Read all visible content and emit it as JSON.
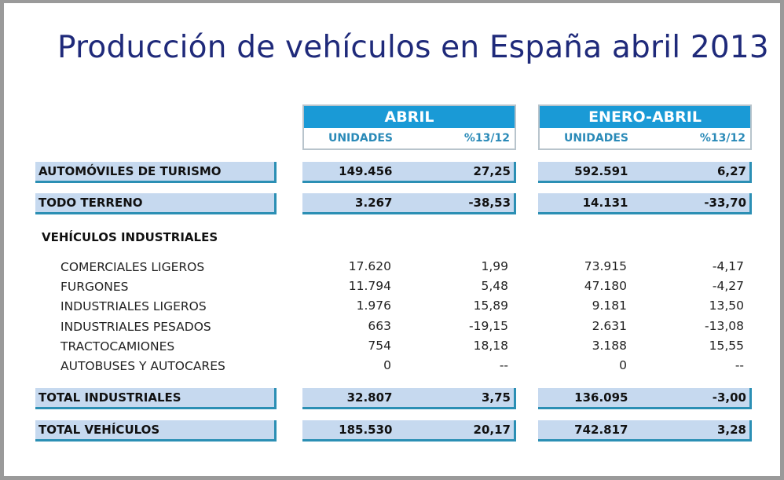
{
  "title": "Producción de vehículos en España abril 2013",
  "columns": {
    "abril": {
      "label": "ABRIL",
      "units": "UNIDADES",
      "pct": "%13/12"
    },
    "enero_abril": {
      "label": "ENERO-ABRIL",
      "units": "UNIDADES",
      "pct": "%13/12"
    }
  },
  "rows": {
    "turismo": {
      "label": "AUTOMÓVILES DE TURISMO",
      "abril_u": "149.456",
      "abril_p": "27,25",
      "ea_u": "592.591",
      "ea_p": "6,27"
    },
    "todo_terreno": {
      "label": "TODO TERRENO",
      "abril_u": "3.267",
      "abril_p": "-38,53",
      "ea_u": "14.131",
      "ea_p": "-33,70"
    },
    "industriales_header": "VEHÍCULOS INDUSTRIALES",
    "industriales": [
      {
        "label": "COMERCIALES LIGEROS",
        "abril_u": "17.620",
        "abril_p": "1,99",
        "ea_u": "73.915",
        "ea_p": "-4,17"
      },
      {
        "label": "FURGONES",
        "abril_u": "11.794",
        "abril_p": "5,48",
        "ea_u": "47.180",
        "ea_p": "-4,27"
      },
      {
        "label": "INDUSTRIALES LIGEROS",
        "abril_u": "1.976",
        "abril_p": "15,89",
        "ea_u": "9.181",
        "ea_p": "13,50"
      },
      {
        "label": "INDUSTRIALES PESADOS",
        "abril_u": "663",
        "abril_p": "-19,15",
        "ea_u": "2.631",
        "ea_p": "-13,08"
      },
      {
        "label": "TRACTOCAMIONES",
        "abril_u": "754",
        "abril_p": "18,18",
        "ea_u": "3.188",
        "ea_p": "15,55"
      },
      {
        "label": "AUTOBUSES Y AUTOCARES",
        "abril_u": "0",
        "abril_p": "--",
        "ea_u": "0",
        "ea_p": "--"
      }
    ],
    "total_industriales": {
      "label": "TOTAL INDUSTRIALES",
      "abril_u": "32.807",
      "abril_p": "3,75",
      "ea_u": "136.095",
      "ea_p": "-3,00"
    },
    "total_vehiculos": {
      "label": "TOTAL VEHÍCULOS",
      "abril_u": "185.530",
      "abril_p": "20,17",
      "ea_u": "742.817",
      "ea_p": "3,28"
    }
  },
  "colors": {
    "header": "#1a9ad6",
    "bar": "#c6d9ef",
    "accent": "#2b8fb4",
    "title": "#1f2a7a"
  }
}
